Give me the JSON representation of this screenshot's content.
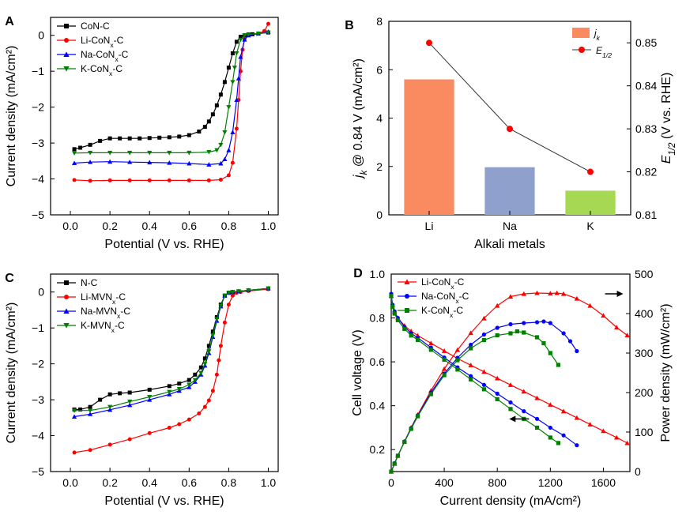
{
  "chart_data": [
    {
      "id": "A",
      "panel_label": "A",
      "type": "line",
      "xlabel": "Potential (V vs. RHE)",
      "ylabel": "Current density (mA/cm²)",
      "xlim": [
        -0.1,
        1.05
      ],
      "ylim": [
        -5,
        0.5
      ],
      "xticks": [
        "0.0",
        "0.2",
        "0.4",
        "0.6",
        "0.8",
        "1.0"
      ],
      "xtick_values": [
        0,
        0.2,
        0.4,
        0.6,
        0.8,
        1.0
      ],
      "yticks": [
        "0",
        "−1",
        "−2",
        "−3",
        "−4",
        "−5"
      ],
      "ytick_values": [
        0,
        -1,
        -2,
        -3,
        -4,
        -5
      ],
      "series": [
        {
          "name": "CoN-C",
          "name_base": "CoN-C",
          "name_sub": "",
          "name_tail": "",
          "color": "#000000",
          "marker": "square",
          "x": [
            0.02,
            0.05,
            0.1,
            0.15,
            0.2,
            0.25,
            0.3,
            0.35,
            0.4,
            0.45,
            0.5,
            0.55,
            0.6,
            0.65,
            0.68,
            0.7,
            0.72,
            0.74,
            0.76,
            0.78,
            0.8,
            0.82,
            0.84,
            0.86,
            0.88,
            0.9,
            0.92,
            0.95,
            1.0
          ],
          "y": [
            -3.17,
            -3.13,
            -3.05,
            -2.94,
            -2.87,
            -2.87,
            -2.87,
            -2.87,
            -2.86,
            -2.85,
            -2.84,
            -2.82,
            -2.78,
            -2.68,
            -2.55,
            -2.4,
            -2.2,
            -1.95,
            -1.65,
            -1.3,
            -0.9,
            -0.5,
            -0.18,
            -0.04,
            0.0,
            0.02,
            0.03,
            0.05,
            0.08
          ]
        },
        {
          "name": "Li-CoNx-C",
          "name_base": "Li-CoN",
          "name_sub": "x",
          "name_tail": "-C",
          "color": "#ff0000",
          "marker": "circle",
          "x": [
            0.02,
            0.1,
            0.2,
            0.3,
            0.4,
            0.5,
            0.6,
            0.7,
            0.76,
            0.8,
            0.82,
            0.84,
            0.85,
            0.86,
            0.87,
            0.88,
            0.9,
            0.95,
            0.98,
            1.0
          ],
          "y": [
            -4.03,
            -4.05,
            -4.04,
            -4.04,
            -4.04,
            -4.04,
            -4.04,
            -4.04,
            -4.02,
            -3.9,
            -3.55,
            -2.6,
            -1.8,
            -1.0,
            -0.4,
            -0.1,
            0.0,
            0.05,
            0.12,
            0.32
          ]
        },
        {
          "name": "Na-CoNx-C",
          "name_base": "Na-CoN",
          "name_sub": "x",
          "name_tail": "-C",
          "color": "#0000ff",
          "marker": "triangle-up",
          "x": [
            0.02,
            0.1,
            0.2,
            0.3,
            0.4,
            0.5,
            0.6,
            0.7,
            0.76,
            0.78,
            0.8,
            0.82,
            0.84,
            0.85,
            0.86,
            0.88,
            0.9,
            0.95,
            1.0
          ],
          "y": [
            -3.56,
            -3.53,
            -3.52,
            -3.53,
            -3.54,
            -3.55,
            -3.57,
            -3.6,
            -3.57,
            -3.45,
            -3.2,
            -2.7,
            -1.8,
            -1.2,
            -0.6,
            -0.12,
            0.0,
            0.05,
            0.1
          ]
        },
        {
          "name": "K-CoNx-C",
          "name_base": "K-CoN",
          "name_sub": "x",
          "name_tail": "-C",
          "color": "#008000",
          "marker": "triangle-down",
          "x": [
            0.02,
            0.1,
            0.2,
            0.3,
            0.4,
            0.5,
            0.6,
            0.7,
            0.74,
            0.76,
            0.78,
            0.8,
            0.82,
            0.83,
            0.84,
            0.86,
            0.88,
            0.9,
            0.95,
            1.0
          ],
          "y": [
            -3.28,
            -3.27,
            -3.27,
            -3.27,
            -3.27,
            -3.27,
            -3.27,
            -3.25,
            -3.2,
            -3.05,
            -2.7,
            -2.0,
            -1.3,
            -0.9,
            -0.5,
            -0.12,
            0.0,
            0.03,
            0.05,
            0.08
          ]
        }
      ]
    },
    {
      "id": "B",
      "panel_label": "B",
      "type": "bar",
      "xlabel": "Alkali metals",
      "categories": [
        "Li",
        "Na",
        "K"
      ],
      "ylabel_main": "j",
      "ylabel_sub": "k",
      "ylabel_tail": " @ 0.84 V (mA/cm²)",
      "ylabel_right_main": "E",
      "ylabel_right_sub": "1/2",
      "ylabel_right_tail": " (V vs. RHE)",
      "ylim": [
        0,
        8
      ],
      "yticks": [
        "0",
        "2",
        "4",
        "6",
        "8"
      ],
      "ytick_values": [
        0,
        2,
        4,
        6,
        8
      ],
      "ylim_right": [
        0.81,
        0.855
      ],
      "yticks_right": [
        "0.81",
        "0.82",
        "0.83",
        "0.84",
        "0.85"
      ],
      "ytick_values_right": [
        0.81,
        0.82,
        0.83,
        0.84,
        0.85
      ],
      "bar_series": {
        "name_main": "j",
        "name_sub": "k",
        "values": [
          5.6,
          1.97,
          1.0
        ],
        "colors": [
          "#fa8b60",
          "#8ea0cb",
          "#a6d854"
        ]
      },
      "line_series": {
        "name_main": "E",
        "name_sub": "1/2",
        "values": [
          0.85,
          0.83,
          0.82
        ],
        "color": "#ff0000"
      }
    },
    {
      "id": "C",
      "panel_label": "C",
      "type": "line",
      "xlabel": "Potential (V vs. RHE)",
      "ylabel": "Current density (mA/cm²)",
      "xlim": [
        -0.1,
        1.05
      ],
      "ylim": [
        -5,
        0.5
      ],
      "xticks": [
        "0.0",
        "0.2",
        "0.4",
        "0.6",
        "0.8",
        "1.0"
      ],
      "xtick_values": [
        0,
        0.2,
        0.4,
        0.6,
        0.8,
        1.0
      ],
      "yticks": [
        "0",
        "−1",
        "−2",
        "−3",
        "−4",
        "−5"
      ],
      "ytick_values": [
        0,
        -1,
        -2,
        -3,
        -4,
        -5
      ],
      "series": [
        {
          "name": "N-C",
          "name_base": "N-C",
          "name_sub": "",
          "name_tail": "",
          "color": "#000000",
          "marker": "square",
          "x": [
            0.02,
            0.05,
            0.1,
            0.15,
            0.2,
            0.25,
            0.3,
            0.4,
            0.5,
            0.55,
            0.6,
            0.63,
            0.66,
            0.68,
            0.7,
            0.72,
            0.74,
            0.76,
            0.78,
            0.8,
            0.82,
            0.85,
            0.9,
            1.0
          ],
          "y": [
            -3.27,
            -3.27,
            -3.2,
            -3.0,
            -2.85,
            -2.82,
            -2.8,
            -2.72,
            -2.62,
            -2.55,
            -2.45,
            -2.3,
            -2.1,
            -1.85,
            -1.5,
            -1.1,
            -0.7,
            -0.35,
            -0.1,
            -0.02,
            0.0,
            0.02,
            0.05,
            0.1
          ]
        },
        {
          "name": "Li-MVNx-C",
          "name_base": "Li-MVN",
          "name_sub": "x",
          "name_tail": "-C",
          "color": "#ff0000",
          "marker": "circle",
          "x": [
            0.02,
            0.1,
            0.2,
            0.3,
            0.4,
            0.5,
            0.55,
            0.6,
            0.65,
            0.68,
            0.7,
            0.72,
            0.74,
            0.75,
            0.76,
            0.78,
            0.8,
            0.82,
            0.84,
            0.86,
            0.9,
            1.0
          ],
          "y": [
            -4.47,
            -4.4,
            -4.25,
            -4.1,
            -3.93,
            -3.78,
            -3.68,
            -3.55,
            -3.38,
            -3.2,
            -3.02,
            -2.75,
            -2.3,
            -1.9,
            -1.5,
            -0.85,
            -0.35,
            -0.1,
            -0.02,
            0.0,
            0.03,
            0.08
          ]
        },
        {
          "name": "Na-MVNx-C",
          "name_base": "Na-MVN",
          "name_sub": "x",
          "name_tail": "-C",
          "color": "#0000ff",
          "marker": "triangle-up",
          "x": [
            0.02,
            0.1,
            0.2,
            0.3,
            0.4,
            0.5,
            0.55,
            0.6,
            0.63,
            0.66,
            0.68,
            0.7,
            0.72,
            0.74,
            0.76,
            0.78,
            0.8,
            0.82,
            0.85,
            0.9,
            1.0
          ],
          "y": [
            -3.47,
            -3.4,
            -3.28,
            -3.15,
            -3.0,
            -2.85,
            -2.75,
            -2.65,
            -2.5,
            -2.3,
            -2.05,
            -1.7,
            -1.25,
            -0.8,
            -0.4,
            -0.1,
            -0.02,
            0.0,
            0.02,
            0.05,
            0.1
          ]
        },
        {
          "name": "K-MVNx-C",
          "name_base": "K-MVN",
          "name_sub": "x",
          "name_tail": "-C",
          "color": "#008000",
          "marker": "triangle-down",
          "x": [
            0.02,
            0.1,
            0.2,
            0.3,
            0.4,
            0.5,
            0.55,
            0.6,
            0.63,
            0.66,
            0.68,
            0.7,
            0.72,
            0.74,
            0.76,
            0.78,
            0.8,
            0.82,
            0.85,
            0.9,
            1.0
          ],
          "y": [
            -3.3,
            -3.3,
            -3.2,
            -3.05,
            -2.92,
            -2.78,
            -2.7,
            -2.58,
            -2.45,
            -2.25,
            -2.0,
            -1.65,
            -1.2,
            -0.75,
            -0.38,
            -0.1,
            -0.02,
            0.0,
            0.02,
            0.05,
            0.1
          ]
        }
      ]
    },
    {
      "id": "D",
      "panel_label": "D",
      "type": "scatter",
      "xlabel": "Current density (mA/cm²)",
      "ylabel": "Cell voltage (V)",
      "ylabel_right": "Power density (mW/cm²)",
      "xlim": [
        0,
        1800
      ],
      "ylim": [
        0.1,
        1.0
      ],
      "ylim_right": [
        0,
        500
      ],
      "xticks": [
        "0",
        "400",
        "800",
        "1200",
        "1600"
      ],
      "xtick_values": [
        0,
        400,
        800,
        1200,
        1600
      ],
      "yticks": [
        "0.2",
        "0.4",
        "0.6",
        "0.8",
        "1.0"
      ],
      "ytick_values": [
        0.2,
        0.4,
        0.6,
        0.8,
        1.0
      ],
      "yticks_right": [
        "0",
        "100",
        "200",
        "300",
        "400",
        "500"
      ],
      "ytick_values_right": [
        0,
        100,
        200,
        300,
        400,
        500
      ],
      "series": [
        {
          "name": "Li-CoNx-C",
          "name_base": "Li-CoN",
          "name_sub": "x",
          "name_tail": "-C",
          "color": "#ff0000",
          "marker": "triangle-up",
          "voltage": {
            "x": [
              0,
              10,
              25,
              50,
              100,
              150,
              200,
              300,
              400,
              500,
              600,
              700,
              800,
              900,
              1000,
              1100,
              1200,
              1300,
              1400,
              1500,
              1600,
              1700,
              1780
            ],
            "y": [
              0.9,
              0.86,
              0.83,
              0.8,
              0.765,
              0.74,
              0.72,
              0.685,
              0.65,
              0.615,
              0.585,
              0.555,
              0.525,
              0.495,
              0.465,
              0.435,
              0.405,
              0.375,
              0.345,
              0.315,
              0.285,
              0.255,
              0.23
            ]
          },
          "power": {
            "x": [
              0,
              25,
              50,
              100,
              150,
              200,
              300,
              400,
              500,
              600,
              700,
              800,
              900,
              1000,
              1100,
              1200,
              1250,
              1300,
              1400,
              1500,
              1600,
              1700,
              1780
            ],
            "y": [
              0,
              20,
              40,
              76,
              111,
              144,
              205,
              260,
              308,
              351,
              388,
              420,
              443,
              450,
              452,
              451,
              452,
              450,
              438,
              420,
              395,
              365,
              345
            ]
          }
        },
        {
          "name": "Na-CoNx-C",
          "name_base": "Na-CoN",
          "name_sub": "x",
          "name_tail": "-C",
          "color": "#0000ff",
          "marker": "circle",
          "voltage": {
            "x": [
              0,
              10,
              25,
              50,
              100,
              150,
              200,
              300,
              400,
              500,
              600,
              700,
              800,
              900,
              1000,
              1100,
              1200,
              1300,
              1400
            ],
            "y": [
              0.91,
              0.86,
              0.83,
              0.8,
              0.76,
              0.73,
              0.71,
              0.665,
              0.62,
              0.575,
              0.535,
              0.495,
              0.455,
              0.415,
              0.375,
              0.34,
              0.3,
              0.265,
              0.22
            ]
          },
          "power": {
            "x": [
              0,
              25,
              50,
              100,
              150,
              200,
              300,
              400,
              500,
              600,
              700,
              800,
              900,
              1000,
              1100,
              1150,
              1200,
              1300,
              1350,
              1400
            ],
            "y": [
              0,
              21,
              40,
              76,
              110,
              142,
              200,
              248,
              288,
              321,
              347,
              364,
              373,
              376,
              378,
              380,
              376,
              350,
              330,
              305
            ]
          }
        },
        {
          "name": "K-CoNx-C",
          "name_base": "K-CoN",
          "name_sub": "x",
          "name_tail": "-C",
          "color": "#008000",
          "marker": "square",
          "voltage": {
            "x": [
              0,
              10,
              25,
              50,
              100,
              150,
              200,
              300,
              400,
              500,
              600,
              700,
              800,
              900,
              1000,
              1100,
              1200,
              1260
            ],
            "y": [
              0.9,
              0.85,
              0.82,
              0.79,
              0.75,
              0.72,
              0.7,
              0.655,
              0.61,
              0.565,
              0.52,
              0.475,
              0.43,
              0.385,
              0.34,
              0.3,
              0.255,
              0.23
            ]
          },
          "power": {
            "x": [
              0,
              25,
              50,
              100,
              150,
              200,
              300,
              400,
              500,
              600,
              700,
              800,
              900,
              950,
              1000,
              1100,
              1150,
              1200,
              1260
            ],
            "y": [
              0,
              20,
              40,
              75,
              108,
              140,
              196,
              244,
              282,
              312,
              333,
              345,
              350,
              355,
              352,
              340,
              325,
              300,
              270
            ]
          }
        }
      ]
    }
  ]
}
